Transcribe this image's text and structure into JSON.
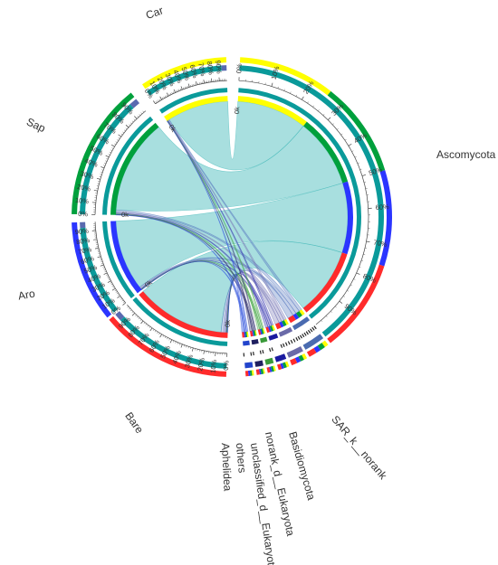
{
  "chart_data": {
    "type": "chord",
    "title": "",
    "samples": [
      {
        "name": "Car",
        "color": "#ffff00"
      },
      {
        "name": "Sap",
        "color": "#00a03c"
      },
      {
        "name": "Aro",
        "color": "#2b35ff"
      },
      {
        "name": "Bare",
        "color": "#ff2b2b"
      }
    ],
    "taxa": [
      {
        "name": "Ascomycota",
        "color": "#0a9a9a"
      },
      {
        "name": "SAR_k__norank",
        "color": "#4a6bb0"
      },
      {
        "name": "Basidiomycota",
        "color": "#6a6aa8"
      },
      {
        "name": "norank_d__Eukaryota",
        "color": "#1a1aa0"
      },
      {
        "name": "unclassified_d__Eukaryota",
        "color": "#3a9a3a"
      },
      {
        "name": "others",
        "color": "#202060"
      },
      {
        "name": "Aphelidea",
        "color": "#2244cc"
      }
    ],
    "sample_links": {
      "Car": {
        "Ascomycota": 0.96,
        "SAR_k__norank": 0.015,
        "Basidiomycota": 0.01,
        "norank_d__Eukaryota": 0.006,
        "unclassified_d__Eukaryota": 0.005,
        "others": 0.002,
        "Aphelidea": 0.002
      },
      "Sap": {
        "Ascomycota": 0.95,
        "SAR_k__norank": 0.02,
        "Basidiomycota": 0.012,
        "norank_d__Eukaryota": 0.007,
        "unclassified_d__Eukaryota": 0.006,
        "others": 0.003,
        "Aphelidea": 0.002
      },
      "Aro": {
        "Ascomycota": 0.955,
        "SAR_k__norank": 0.018,
        "Basidiomycota": 0.012,
        "norank_d__Eukaryota": 0.006,
        "unclassified_d__Eukaryota": 0.005,
        "others": 0.002,
        "Aphelidea": 0.002
      },
      "Bare": {
        "Ascomycota": 0.93,
        "SAR_k__norank": 0.03,
        "Basidiomycota": 0.018,
        "norank_d__Eukaryota": 0.008,
        "unclassified_d__Eukaryota": 0.007,
        "others": 0.004,
        "Aphelidea": 0.003
      }
    },
    "sample_weights": {
      "Car": 1,
      "Sap": 1,
      "Aro": 1,
      "Bare": 1
    },
    "inner_tick_label": "0k",
    "percent_tick_labels": [
      "0%",
      "10%",
      "20%",
      "30%",
      "40%",
      "50%",
      "60%",
      "70%",
      "80%",
      "90%"
    ],
    "legend": "none"
  }
}
